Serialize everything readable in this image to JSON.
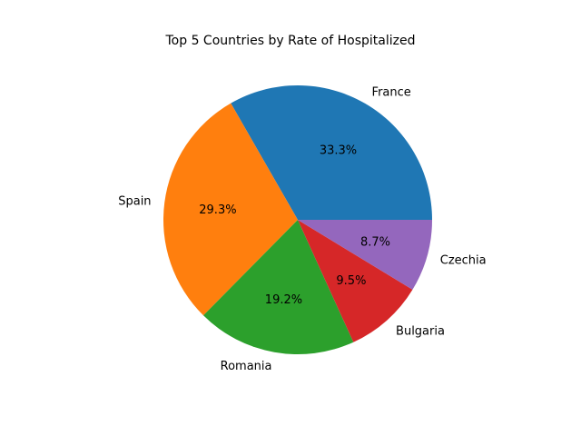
{
  "chart_data": {
    "type": "pie",
    "title": "Top 5 Countries by Rate of Hospitalized",
    "categories": [
      "France",
      "Spain",
      "Romania",
      "Bulgaria",
      "Czechia"
    ],
    "values": [
      33.3,
      29.3,
      19.2,
      9.5,
      8.7
    ],
    "percent_labels": [
      "33.3%",
      "29.3%",
      "19.2%",
      "9.5%",
      "8.7%"
    ],
    "colors": [
      "#1f77b4",
      "#ff7f0e",
      "#2ca02c",
      "#d62728",
      "#9467bd"
    ],
    "start_angle_deg": 0,
    "direction": "counterclockwise",
    "legend": "none"
  }
}
